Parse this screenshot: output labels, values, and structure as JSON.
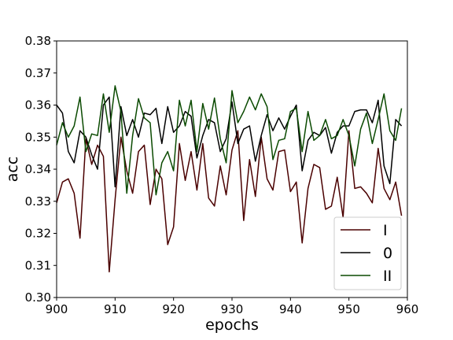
{
  "chart_data": {
    "type": "line",
    "xlabel": "epochs",
    "ylabel": "acc",
    "xlim": [
      900,
      960
    ],
    "ylim": [
      0.3,
      0.38
    ],
    "xticks": [
      900,
      910,
      920,
      930,
      940,
      950,
      960
    ],
    "yticks": [
      "0.30",
      "0.31",
      "0.32",
      "0.33",
      "0.34",
      "0.35",
      "0.36",
      "0.37",
      "0.38"
    ],
    "grid": false,
    "legend_position": "bottom-right",
    "x": [
      900,
      901,
      902,
      903,
      904,
      905,
      906,
      907,
      908,
      909,
      910,
      911,
      912,
      913,
      914,
      915,
      916,
      917,
      918,
      919,
      920,
      921,
      922,
      923,
      924,
      925,
      926,
      927,
      928,
      929,
      930,
      931,
      932,
      933,
      934,
      935,
      936,
      937,
      938,
      939,
      940,
      941,
      942,
      943,
      944,
      945,
      946,
      947,
      948,
      949,
      950,
      951,
      952,
      953,
      954,
      955,
      956,
      957,
      958,
      959
    ],
    "series": [
      {
        "name": "I",
        "color": "#4a0000",
        "values": [
          0.3295,
          0.336,
          0.337,
          0.3325,
          0.3185,
          0.3495,
          0.3415,
          0.3475,
          0.344,
          0.308,
          0.3305,
          0.35,
          0.3395,
          0.3325,
          0.3455,
          0.3475,
          0.329,
          0.34,
          0.337,
          0.3165,
          0.322,
          0.348,
          0.3365,
          0.3455,
          0.3335,
          0.348,
          0.331,
          0.3285,
          0.341,
          0.332,
          0.346,
          0.352,
          0.324,
          0.343,
          0.3315,
          0.35,
          0.337,
          0.3335,
          0.3455,
          0.346,
          0.333,
          0.336,
          0.317,
          0.334,
          0.3415,
          0.3405,
          0.3275,
          0.3285,
          0.3375,
          0.325,
          0.352,
          0.334,
          0.3345,
          0.3325,
          0.3295,
          0.3465,
          0.334,
          0.3305,
          0.336,
          0.3255
        ]
      },
      {
        "name": "0",
        "color": "#000000",
        "values": [
          0.36,
          0.3575,
          0.3455,
          0.342,
          0.352,
          0.35,
          0.3445,
          0.34,
          0.36,
          0.3625,
          0.3345,
          0.3595,
          0.3505,
          0.3555,
          0.35,
          0.3575,
          0.357,
          0.359,
          0.348,
          0.3595,
          0.3515,
          0.3535,
          0.358,
          0.3565,
          0.3435,
          0.3505,
          0.3555,
          0.3545,
          0.3455,
          0.3495,
          0.361,
          0.348,
          0.3525,
          0.3535,
          0.3425,
          0.3505,
          0.357,
          0.352,
          0.356,
          0.3525,
          0.3565,
          0.36,
          0.3395,
          0.349,
          0.3515,
          0.3505,
          0.353,
          0.345,
          0.3515,
          0.3535,
          0.3535,
          0.358,
          0.3585,
          0.3585,
          0.3545,
          0.3615,
          0.341,
          0.3355,
          0.3555,
          0.3535
        ]
      },
      {
        "name": "II",
        "color": "#0a4a00",
        "values": [
          0.3475,
          0.3545,
          0.35,
          0.3535,
          0.3625,
          0.3455,
          0.351,
          0.3505,
          0.3635,
          0.3515,
          0.366,
          0.358,
          0.3325,
          0.3505,
          0.362,
          0.356,
          0.3545,
          0.332,
          0.342,
          0.3455,
          0.3395,
          0.3615,
          0.3535,
          0.3615,
          0.3455,
          0.3605,
          0.3525,
          0.3622,
          0.3495,
          0.342,
          0.3645,
          0.3545,
          0.358,
          0.3625,
          0.3585,
          0.3635,
          0.3595,
          0.343,
          0.349,
          0.3495,
          0.358,
          0.359,
          0.3455,
          0.358,
          0.349,
          0.3505,
          0.3555,
          0.3495,
          0.3505,
          0.3555,
          0.3505,
          0.341,
          0.3525,
          0.3575,
          0.348,
          0.3555,
          0.3635,
          0.352,
          0.349,
          0.359
        ]
      }
    ]
  }
}
